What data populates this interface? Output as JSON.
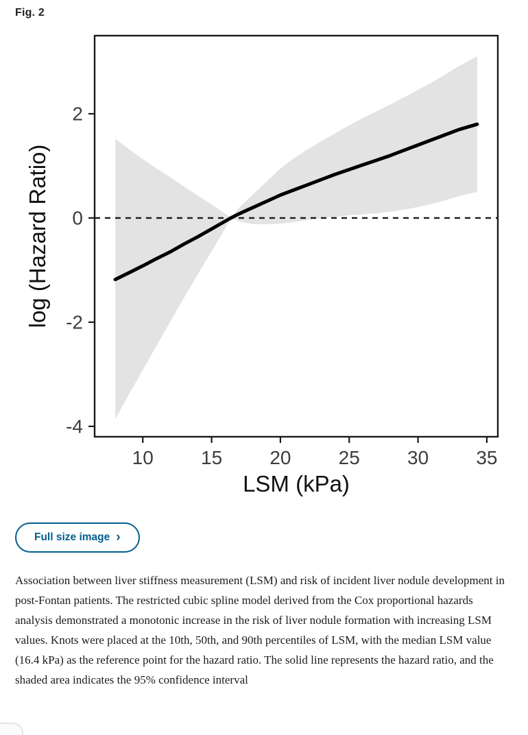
{
  "figure": {
    "label": "Fig. 2",
    "button": {
      "label": "Full size image",
      "chevron": "›"
    },
    "caption": "Association between liver stiffness measurement (LSM) and risk of incident liver nodule development in post-Fontan patients. The restricted cubic spline model derived from the Cox proportional hazards analysis demonstrated a monotonic increase in the risk of liver nodule formation with increasing LSM values. Knots were placed at the 10th, 50th, and 90th percentiles of LSM, with the median LSM value (16.4 kPa) as the reference point for the hazard ratio. The solid line represents the hazard ratio, and the shaded area indicates the 95% confidence interval"
  },
  "colors": {
    "accent": "#025e8d",
    "band": "#e3e3e3",
    "line": "#000000",
    "frame": "#1a1a1a",
    "tick_label": "#3d3d3d",
    "axis_title": "#111111"
  },
  "chart_data": {
    "type": "line",
    "title": "",
    "xlabel": "LSM (kPa)",
    "ylabel": "log (Hazard Ratio)",
    "xlim": [
      6.5,
      35.8
    ],
    "ylim": [
      -4.2,
      3.5
    ],
    "x_ticks": [
      10,
      15,
      20,
      25,
      30,
      35
    ],
    "y_ticks": [
      2,
      0,
      -2,
      -4
    ],
    "grid": false,
    "legend": "none",
    "reference_line_y": 0,
    "reference_point_x": 16.4,
    "x": [
      8,
      9,
      10,
      11,
      12,
      13,
      14,
      15,
      16,
      16.4,
      17,
      18,
      19,
      20,
      21,
      22,
      23,
      24,
      25,
      26,
      27,
      28,
      29,
      30,
      31,
      32,
      33,
      34.3
    ],
    "series": [
      {
        "name": "log hazard ratio (solid line)",
        "values": [
          -1.18,
          -1.05,
          -0.92,
          -0.78,
          -0.65,
          -0.5,
          -0.36,
          -0.21,
          -0.06,
          0,
          0.08,
          0.2,
          0.32,
          0.44,
          0.54,
          0.64,
          0.74,
          0.84,
          0.93,
          1.02,
          1.11,
          1.2,
          1.3,
          1.4,
          1.5,
          1.6,
          1.7,
          1.8
        ]
      },
      {
        "name": "95% CI lower bound",
        "values": [
          -3.86,
          -3.38,
          -2.92,
          -2.45,
          -1.99,
          -1.53,
          -1.08,
          -0.64,
          -0.2,
          0,
          -0.07,
          -0.12,
          -0.12,
          -0.11,
          -0.08,
          -0.04,
          0.0,
          0.02,
          0.05,
          0.07,
          0.09,
          0.12,
          0.16,
          0.21,
          0.27,
          0.34,
          0.42,
          0.5
        ]
      },
      {
        "name": "95% CI upper bound",
        "values": [
          1.52,
          1.32,
          1.13,
          0.95,
          0.78,
          0.6,
          0.43,
          0.26,
          0.08,
          0,
          0.2,
          0.45,
          0.7,
          0.95,
          1.15,
          1.32,
          1.48,
          1.63,
          1.78,
          1.92,
          2.05,
          2.18,
          2.32,
          2.46,
          2.6,
          2.76,
          2.92,
          3.1
        ]
      }
    ]
  }
}
